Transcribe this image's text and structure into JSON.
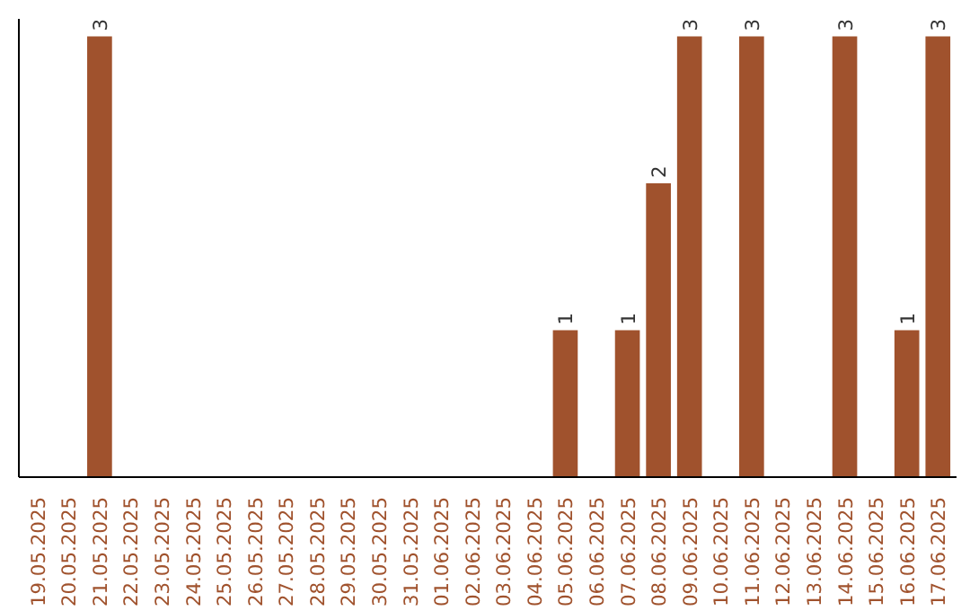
{
  "chart_data": {
    "type": "bar",
    "categories": [
      "19.05.2025",
      "20.05.2025",
      "21.05.2025",
      "22.05.2025",
      "23.05.2025",
      "24.05.2025",
      "25.05.2025",
      "26.05.2025",
      "27.05.2025",
      "28.05.2025",
      "29.05.2025",
      "30.05.2025",
      "31.05.2025",
      "01.06.2025",
      "02.06.2025",
      "03.06.2025",
      "04.06.2025",
      "05.06.2025",
      "06.06.2025",
      "07.06.2025",
      "08.06.2025",
      "09.06.2025",
      "10.06.2025",
      "11.06.2025",
      "12.06.2025",
      "13.06.2025",
      "14.06.2025",
      "15.06.2025",
      "16.06.2025",
      "17.06.2025"
    ],
    "values": [
      0,
      0,
      3,
      0,
      0,
      0,
      0,
      0,
      0,
      0,
      0,
      0,
      0,
      0,
      0,
      0,
      0,
      1,
      0,
      1,
      2,
      3,
      0,
      3,
      0,
      0,
      3,
      0,
      1,
      3
    ],
    "value_labels": [
      null,
      null,
      "3",
      null,
      null,
      null,
      null,
      null,
      null,
      null,
      null,
      null,
      null,
      null,
      null,
      null,
      null,
      "1",
      null,
      "1",
      "2",
      "3",
      null,
      "3",
      null,
      null,
      "3",
      null,
      "1",
      "3"
    ],
    "color": "#a0522d",
    "grid": false,
    "tick_labels": "x"
  }
}
